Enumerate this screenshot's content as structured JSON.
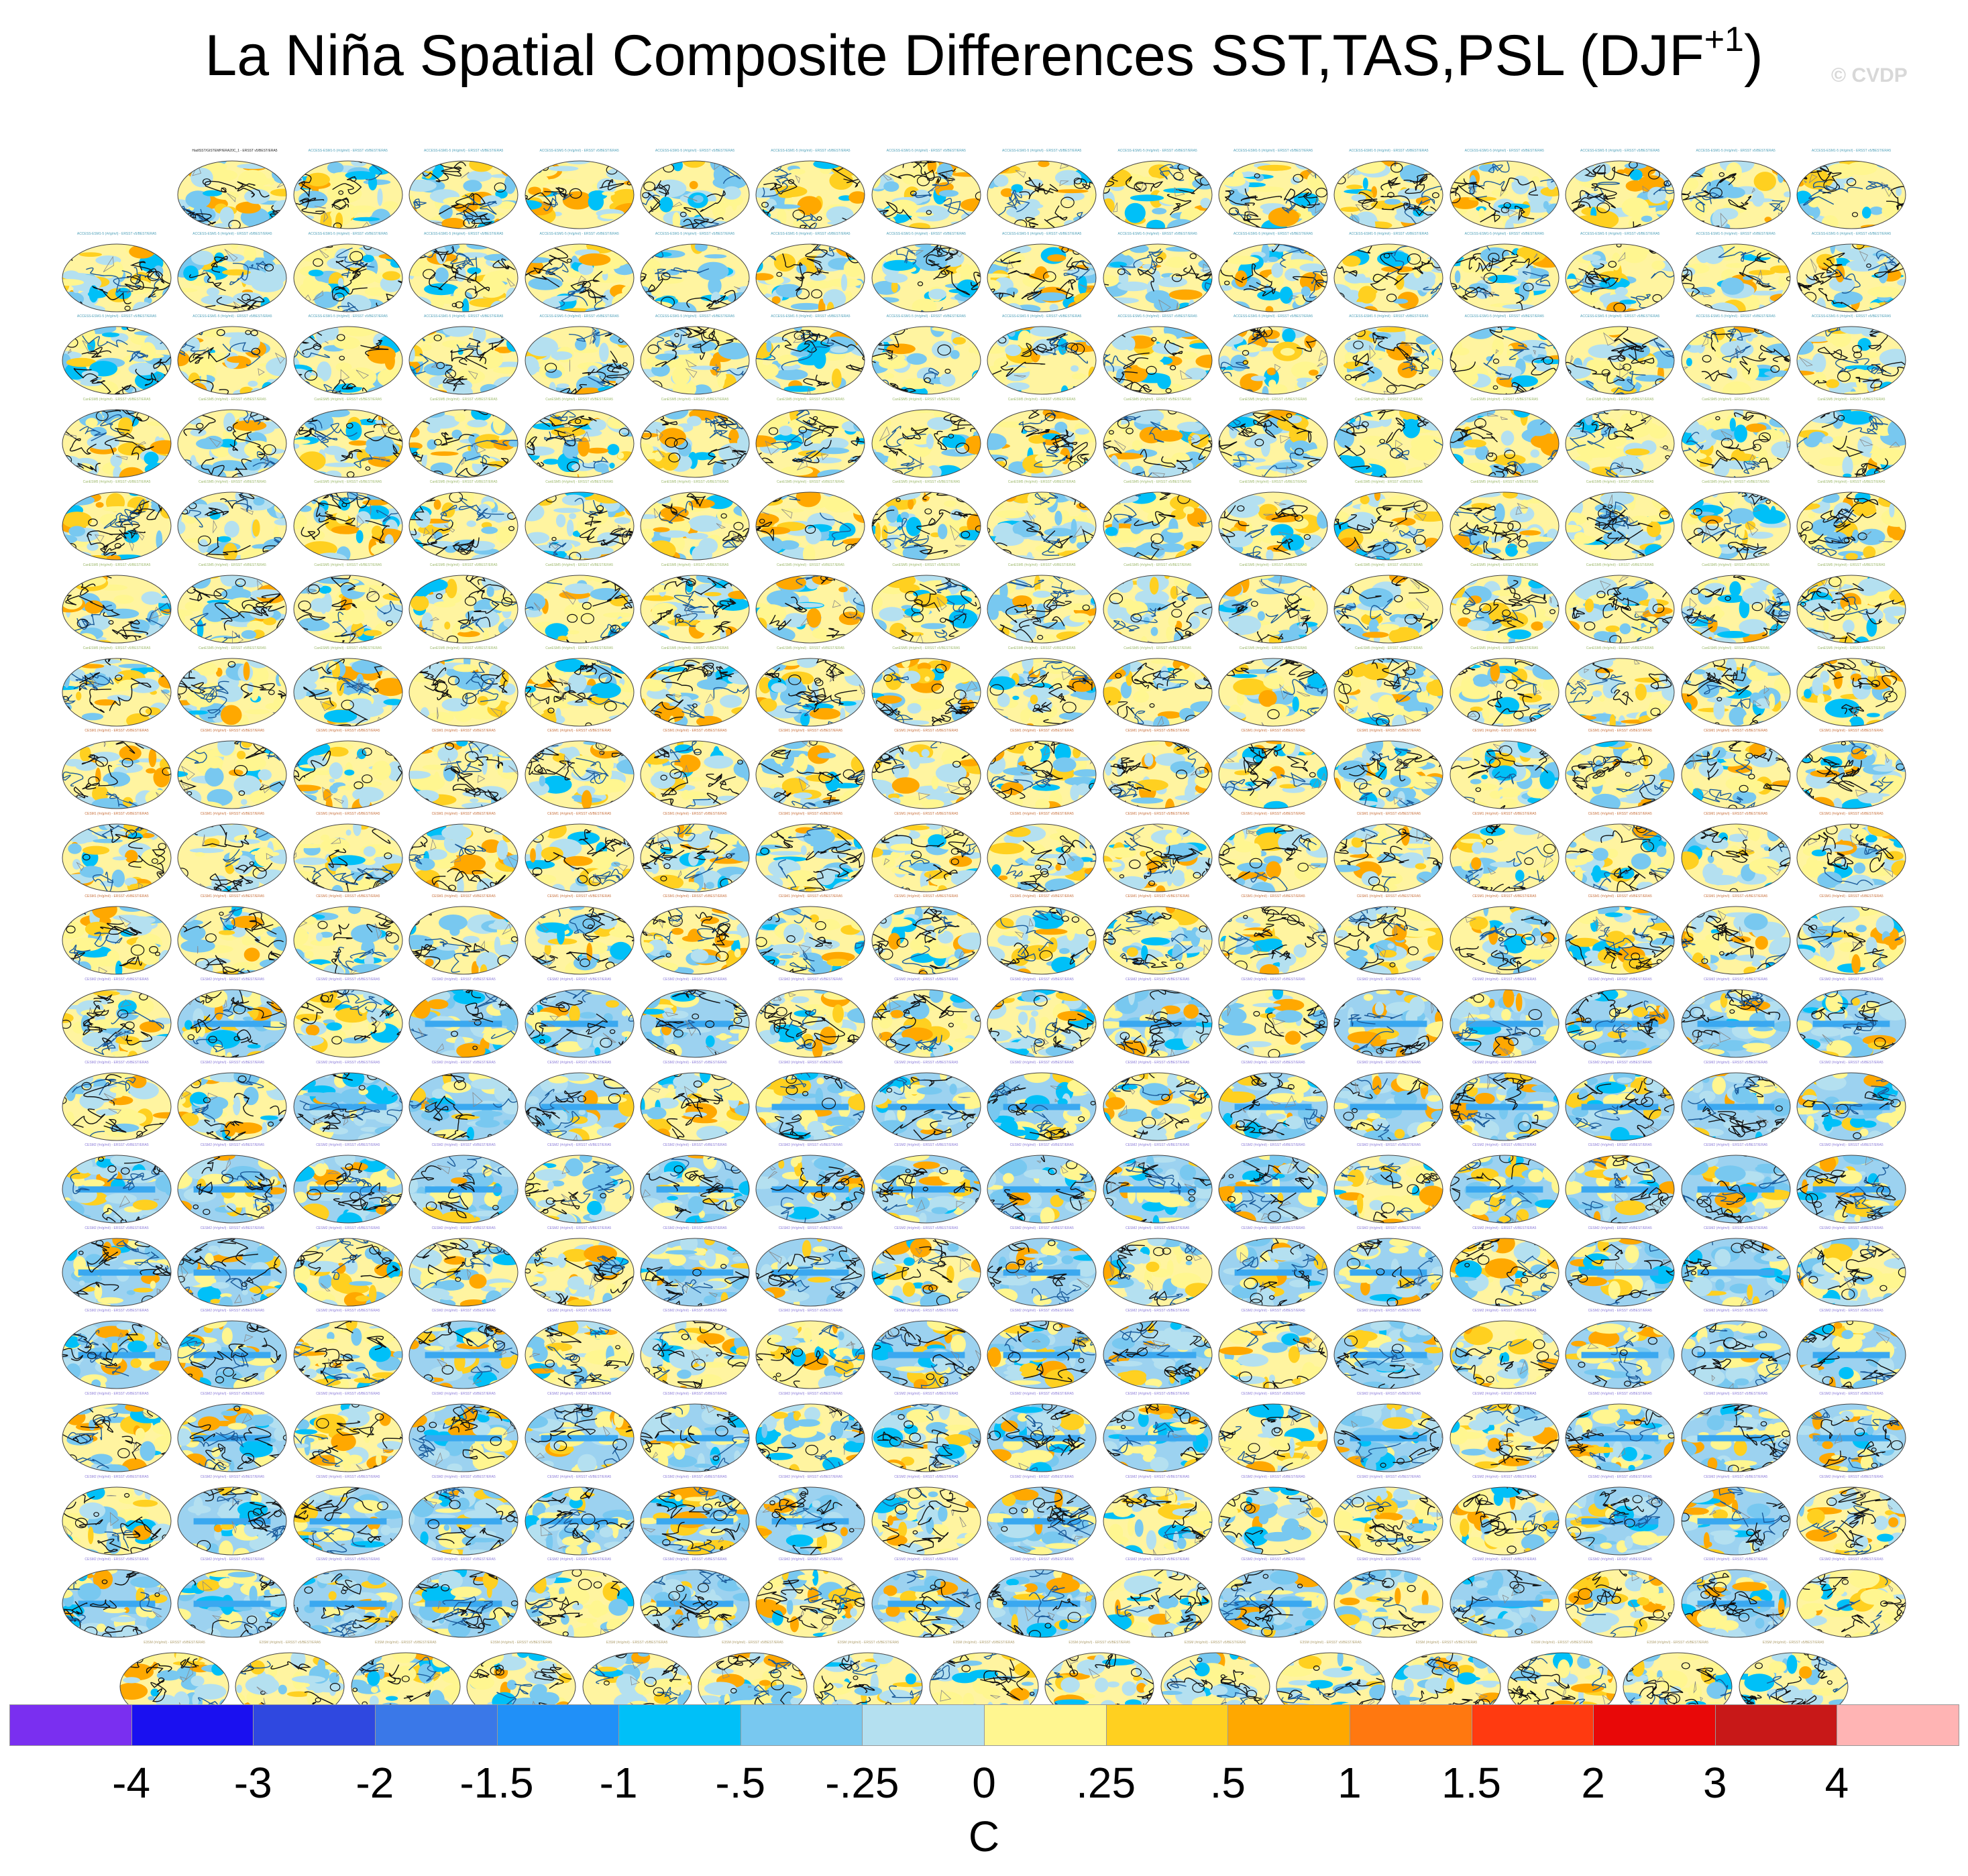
{
  "title_main": "La Niña Spatial Composite Differences SST,TAS,PSL (DJF",
  "title_sup": "+1",
  "title_close": ")",
  "watermark": "© CVDP",
  "chart_data": {
    "type": "heatmap",
    "title": "La Niña Spatial Composite Differences SST,TAS,PSL (DJF+1)",
    "panel_grid": {
      "rows": 19,
      "columns": 16,
      "first_row_panels": 15,
      "last_row_panels": 15
    },
    "first_panel_label": "HadISST/GISTEMP/ERA20C_1 - ERSST v5/BEST/ERA5",
    "panel_labels_by_row": [
      "ACCESS-ESM1-5 (#r/g/m/i) - ERSST v5/BEST/ERA5",
      "ACCESS-ESM1-5 (#r/g/m/i) - ERSST v5/BEST/ERA5",
      "ACCESS-ESM1-5 (#r/g/m/i) - ERSST v5/BEST/ERA5",
      "CanESM5 (#r/g/m/i) - ERSST v5/BEST/ERA5",
      "CanESM5 (#r/g/m/i) - ERSST v5/BEST/ERA5",
      "CanESM5 (#r/g/m/i) - ERSST v5/BEST/ERA5",
      "CanESM5 (#r/g/m/i) - ERSST v5/BEST/ERA5",
      "CESM1 (#r/g/m/i) - ERSST v5/BEST/ERA5",
      "CESM1 (#r/g/m/i) - ERSST v5/BEST/ERA5",
      "CESM1 (#r/g/m/i) - ERSST v5/BEST/ERA5",
      "CESM2 (#r/g/m/i) - ERSST v5/BEST/ERA5",
      "CESM2 (#r/g/m/i) - ERSST v5/BEST/ERA5",
      "CESM2 (#r/g/m/i) - ERSST v5/BEST/ERA5",
      "CESM2 (#r/g/m/i) - ERSST v5/BEST/ERA5",
      "CESM2 (#r/g/m/i) - ERSST v5/BEST/ERA5",
      "CESM2 (#r/g/m/i) - ERSST v5/BEST/ERA5",
      "CESM2 (#r/g/m/i) - ERSST v5/BEST/ERA5",
      "CESM2 (#r/g/m/i) - ERSST v5/BEST/ERA5",
      "E3SM (#r/g/m/i) - ERSST v5/BEST/ERA5"
    ],
    "label_colors_by_row": [
      "#4d9fb8",
      "#4d9fb8",
      "#4d9fb8",
      "#9cb86a",
      "#9cb86a",
      "#9cb86a",
      "#9cb86a",
      "#c8703c",
      "#c8703c",
      "#c8703c",
      "#8a7ad8",
      "#8a7ad8",
      "#8a7ad8",
      "#8a7ad8",
      "#8a7ad8",
      "#8a7ad8",
      "#8a7ad8",
      "#8a7ad8",
      "#b0a070"
    ],
    "colorbar": {
      "label": "C",
      "tick_labels": [
        "-4",
        "-3",
        "-2",
        "-1.5",
        "-1",
        "-.5",
        "-.25",
        "0",
        ".25",
        ".5",
        "1",
        "1.5",
        "2",
        "3",
        "4"
      ],
      "tick_values": [
        -4,
        -3,
        -2,
        -1.5,
        -1,
        -0.5,
        -0.25,
        0,
        0.25,
        0.5,
        1,
        1.5,
        2,
        3,
        4
      ],
      "colors": [
        "#7a2ff0",
        "#1a10f0",
        "#2f48e0",
        "#3a78e8",
        "#2090f8",
        "#00c0f8",
        "#78c8f0",
        "#b4e0f0",
        "#fff690",
        "#ffd020",
        "#ffa800",
        "#ff7810",
        "#ff3a10",
        "#e80808",
        "#c81818",
        "#ffb4b4"
      ]
    }
  }
}
